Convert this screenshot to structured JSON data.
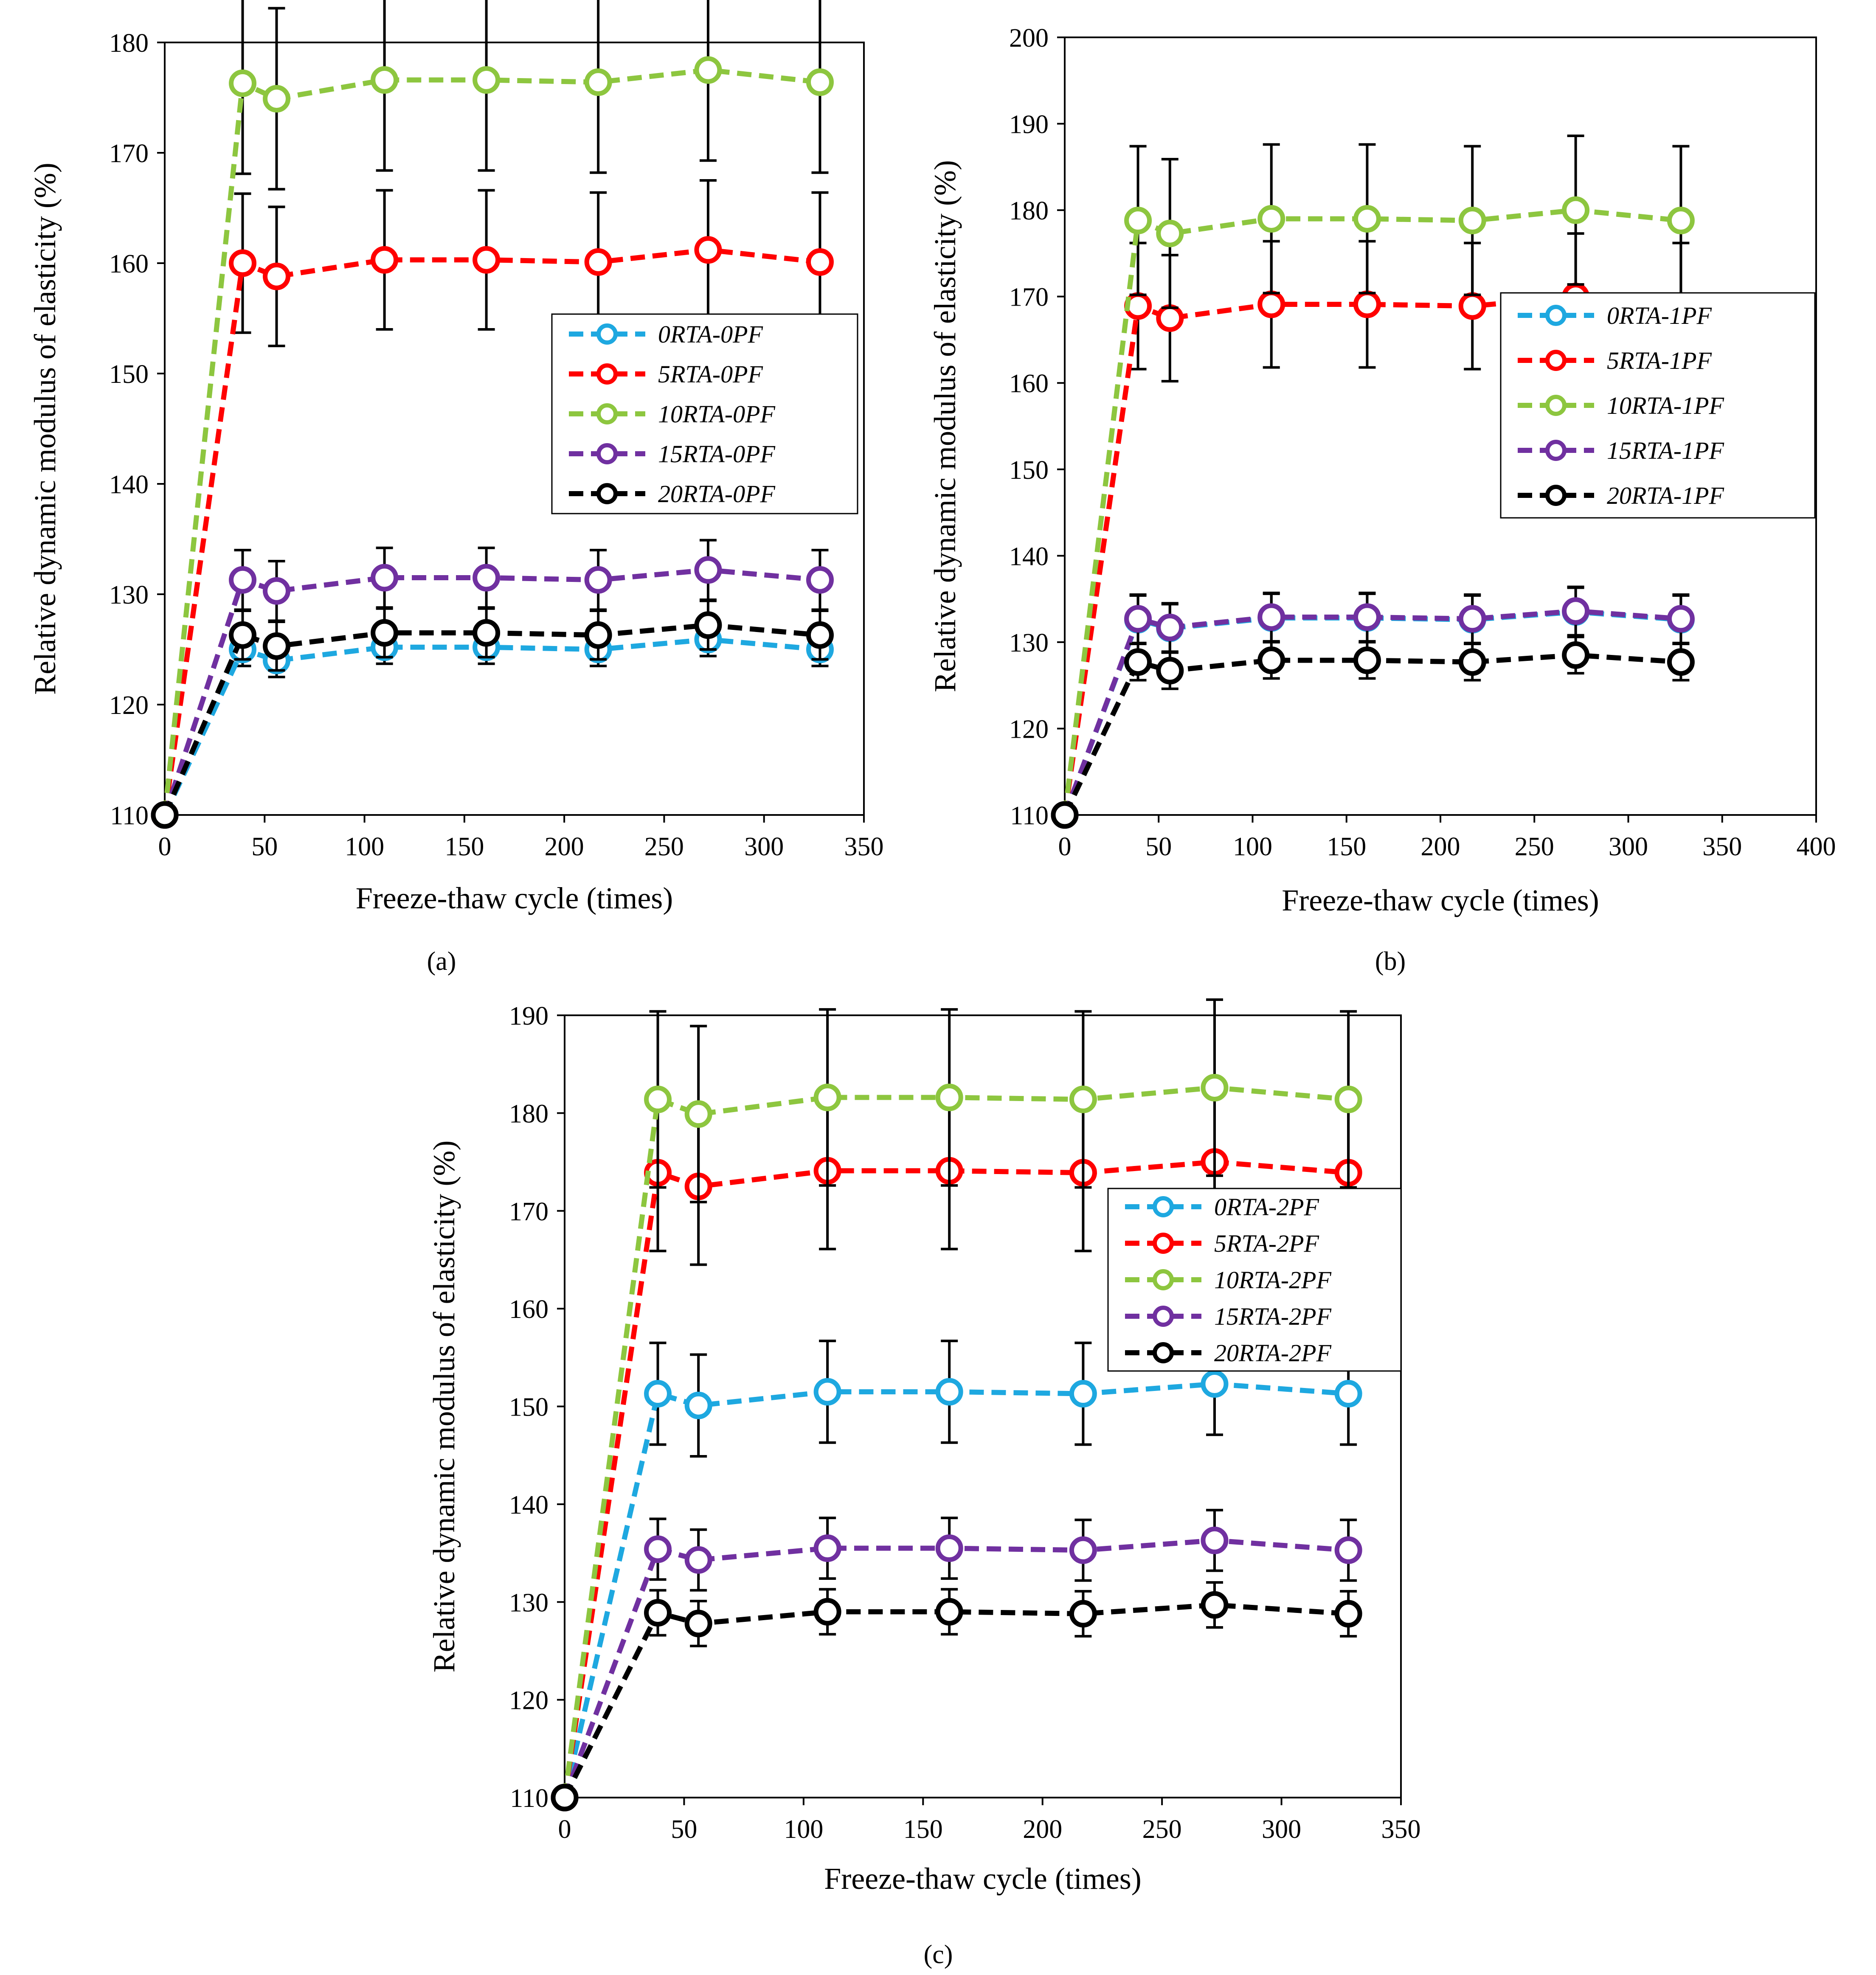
{
  "figure": {
    "panels": [
      {
        "panel_label": "(a)",
        "chart_data": {
          "type": "line",
          "xlabel": "Freeze-thaw cycle (times)",
          "ylabel": "Relative dynamic modulus of elasticity  (%)",
          "xlim": [
            0,
            350
          ],
          "ylim": [
            110,
            180
          ],
          "x_ticks": [
            "0",
            "50",
            "100",
            "150",
            "200",
            "250",
            "300",
            "350"
          ],
          "y_ticks": [
            "110",
            "120",
            "130",
            "140",
            "150",
            "160",
            "170",
            "180"
          ],
          "x": [
            0,
            39,
            56,
            110,
            161,
            217,
            272,
            328
          ],
          "legend_position": "center-right",
          "series": [
            {
              "name": "0RTA-0PF",
              "color": "#1ea8e0",
              "values": [
                110,
                125.0,
                124.0,
                125.2,
                125.2,
                125.0,
                125.9,
                125.0
              ],
              "err": [
                0,
                1.5,
                1.5,
                1.5,
                1.5,
                1.5,
                1.5,
                1.5
              ]
            },
            {
              "name": "5RTA-0PF",
              "color": "#ff0000",
              "values": [
                110,
                160.0,
                158.8,
                160.3,
                160.3,
                160.1,
                161.2,
                160.1
              ],
              "err": [
                0,
                6.3,
                6.3,
                6.3,
                6.3,
                6.3,
                6.3,
                6.3
              ]
            },
            {
              "name": "10RTA-0PF",
              "color": "#8dc63f",
              "values": [
                110,
                176.3,
                174.9,
                176.6,
                176.6,
                176.4,
                177.5,
                176.4
              ],
              "err": [
                0,
                8.2,
                8.2,
                8.2,
                8.2,
                8.2,
                8.2,
                8.2
              ]
            },
            {
              "name": "15RTA-0PF",
              "color": "#7030a0",
              "values": [
                110,
                131.3,
                130.3,
                131.5,
                131.5,
                131.3,
                132.2,
                131.3
              ],
              "err": [
                0,
                2.7,
                2.7,
                2.7,
                2.7,
                2.7,
                2.7,
                2.7
              ]
            },
            {
              "name": "20RTA-0PF",
              "color": "#000000",
              "values": [
                110,
                126.3,
                125.3,
                126.5,
                126.5,
                126.3,
                127.2,
                126.3
              ],
              "err": [
                0,
                2.2,
                2.2,
                2.2,
                2.2,
                2.2,
                2.2,
                2.2
              ]
            }
          ]
        }
      },
      {
        "panel_label": "(b)",
        "chart_data": {
          "type": "line",
          "xlabel": "Freeze-thaw cycle (times)",
          "ylabel": "Relative dynamic modulus of elasticity  (%)",
          "xlim": [
            0,
            400
          ],
          "ylim": [
            110,
            200
          ],
          "x_ticks": [
            "0",
            "50",
            "100",
            "150",
            "200",
            "250",
            "300",
            "350",
            "400"
          ],
          "y_ticks": [
            "110",
            "120",
            "130",
            "140",
            "150",
            "160",
            "170",
            "180",
            "190",
            "200"
          ],
          "x": [
            0,
            39,
            56,
            110,
            161,
            217,
            272,
            328
          ],
          "legend_position": "center-right",
          "series": [
            {
              "name": "0RTA-1PF",
              "color": "#1ea8e0",
              "values": [
                110,
                132.6,
                131.6,
                132.8,
                132.8,
                132.6,
                133.5,
                132.6
              ],
              "err": [
                0,
                2.8,
                2.8,
                2.8,
                2.8,
                2.8,
                2.8,
                2.8
              ]
            },
            {
              "name": "5RTA-1PF",
              "color": "#ff0000",
              "values": [
                110,
                168.9,
                167.5,
                169.1,
                169.1,
                168.9,
                170.0,
                168.9
              ],
              "err": [
                0,
                7.3,
                7.3,
                7.3,
                7.3,
                7.3,
                7.3,
                7.3
              ]
            },
            {
              "name": "10RTA-1PF",
              "color": "#8dc63f",
              "values": [
                110,
                178.8,
                177.3,
                179.0,
                179.0,
                178.8,
                180.0,
                178.8
              ],
              "err": [
                0,
                8.6,
                8.6,
                8.6,
                8.6,
                8.6,
                8.6,
                8.6
              ]
            },
            {
              "name": "15RTA-1PF",
              "color": "#7030a0",
              "values": [
                110,
                132.7,
                131.7,
                132.9,
                132.9,
                132.7,
                133.6,
                132.7
              ],
              "err": [
                0,
                2.8,
                2.8,
                2.8,
                2.8,
                2.8,
                2.8,
                2.8
              ]
            },
            {
              "name": "20RTA-1PF",
              "color": "#000000",
              "values": [
                110,
                127.7,
                126.7,
                127.9,
                127.9,
                127.7,
                128.5,
                127.7
              ],
              "err": [
                0,
                2.1,
                2.1,
                2.1,
                2.1,
                2.1,
                2.1,
                2.1
              ]
            }
          ]
        }
      },
      {
        "panel_label": "(c)",
        "chart_data": {
          "type": "line",
          "xlabel": "Freeze-thaw cycle (times)",
          "ylabel": "Relative dynamic modulus of elasticity  (%)",
          "xlim": [
            0,
            350
          ],
          "ylim": [
            110,
            190
          ],
          "x_ticks": [
            "0",
            "50",
            "100",
            "150",
            "200",
            "250",
            "300",
            "350"
          ],
          "y_ticks": [
            "110",
            "120",
            "130",
            "140",
            "150",
            "160",
            "170",
            "180",
            "190"
          ],
          "x": [
            0,
            39,
            56,
            110,
            161,
            217,
            272,
            328
          ],
          "legend_position": "center-right",
          "series": [
            {
              "name": "0RTA-2PF",
              "color": "#1ea8e0",
              "values": [
                110,
                151.3,
                150.1,
                151.5,
                151.5,
                151.3,
                152.3,
                151.3
              ],
              "err": [
                0,
                5.2,
                5.2,
                5.2,
                5.2,
                5.2,
                5.2,
                5.2
              ]
            },
            {
              "name": "5RTA-2PF",
              "color": "#ff0000",
              "values": [
                110,
                173.9,
                172.5,
                174.1,
                174.1,
                173.9,
                175.0,
                173.9
              ],
              "err": [
                0,
                8.0,
                8.0,
                8.0,
                8.0,
                8.0,
                8.0,
                8.0
              ]
            },
            {
              "name": "10RTA-2PF",
              "color": "#8dc63f",
              "values": [
                110,
                181.4,
                179.9,
                181.6,
                181.6,
                181.4,
                182.6,
                181.4
              ],
              "err": [
                0,
                9.0,
                9.0,
                9.0,
                9.0,
                9.0,
                9.0,
                9.0
              ]
            },
            {
              "name": "15RTA-2PF",
              "color": "#7030a0",
              "values": [
                110,
                135.4,
                134.3,
                135.5,
                135.5,
                135.3,
                136.3,
                135.3
              ],
              "err": [
                0,
                3.1,
                3.1,
                3.1,
                3.1,
                3.1,
                3.1,
                3.1
              ]
            },
            {
              "name": "20RTA-2PF",
              "color": "#000000",
              "values": [
                110,
                128.9,
                127.8,
                129.0,
                129.0,
                128.8,
                129.7,
                128.8
              ],
              "err": [
                0,
                2.3,
                2.3,
                2.3,
                2.3,
                2.3,
                2.3,
                2.3
              ]
            }
          ]
        }
      }
    ]
  }
}
